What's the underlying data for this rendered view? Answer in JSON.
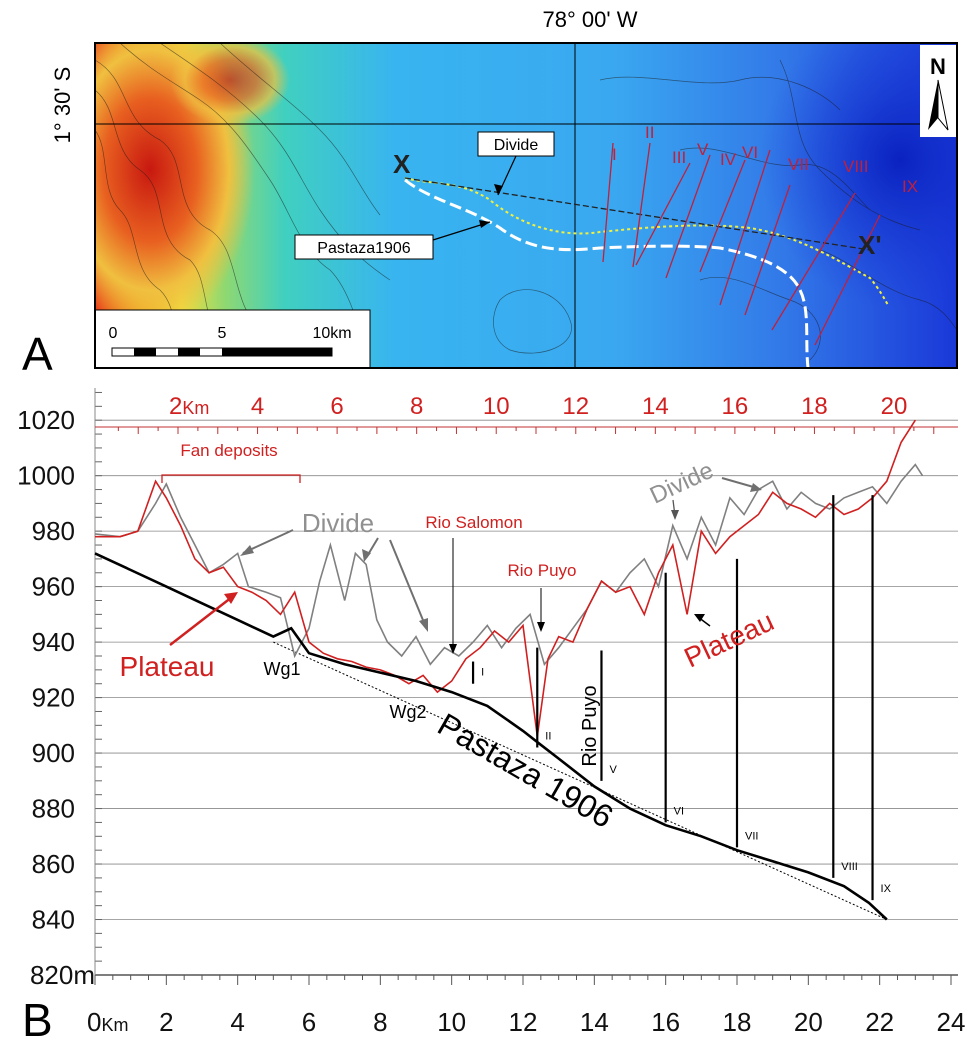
{
  "panel_a": {
    "letter": "A",
    "lon_label": "78° 00' W",
    "lat_label": "1° 30' S",
    "north_label": "N",
    "divide_label": "Divide",
    "pastaza_label": "Pastaza1906",
    "x_label": "X",
    "x_prime_label": "X'",
    "scale": {
      "ticks": [
        "0",
        "5",
        "10km"
      ]
    },
    "roman": [
      "I",
      "II",
      "III",
      "V",
      "IV",
      "VI",
      "VII",
      "VIII",
      "IX"
    ],
    "colors": {
      "low": "#1a3ee0",
      "mid": "#46b8f0",
      "high": "#e02a10",
      "divide": "#e8e830",
      "pastaza": "#ffffff",
      "section": "#c0203a"
    }
  },
  "chart_data": {
    "type": "line",
    "panel_letter": "B",
    "xlabel_bottom": "Km",
    "xlabel_top": "Km",
    "x_bottom_ticks": [
      "0",
      "2",
      "4",
      "6",
      "8",
      "10",
      "12",
      "14",
      "16",
      "18",
      "20",
      "22",
      "24"
    ],
    "x_top_ticks": [
      "2",
      "4",
      "6",
      "8",
      "10",
      "12",
      "14",
      "16",
      "18",
      "20"
    ],
    "y_ticks": [
      "820",
      "840",
      "860",
      "880",
      "900",
      "920",
      "940",
      "960",
      "980",
      "1000",
      "1020"
    ],
    "y_unit": "m",
    "xlim": [
      0,
      24
    ],
    "ylim": [
      817,
      1033
    ],
    "grid": true,
    "series": [
      {
        "name": "Divide",
        "color": "#808080",
        "x": [
          0,
          0.7,
          1.2,
          1.7,
          2.0,
          2.4,
          2.8,
          3.2,
          3.6,
          4.0,
          4.3,
          4.8,
          5.2,
          5.6,
          6.0,
          6.3,
          6.6,
          7.0,
          7.3,
          7.6,
          7.9,
          8.2,
          8.6,
          9.0,
          9.4,
          9.8,
          10.2,
          10.6,
          11.0,
          11.4,
          11.8,
          12.2,
          12.6,
          13.0,
          13.4,
          13.8,
          14.2,
          14.6,
          15.0,
          15.4,
          15.8,
          16.2,
          16.6,
          17.0,
          17.4,
          17.8,
          18.2,
          18.6,
          19.0,
          19.4,
          19.8,
          20.2,
          20.6,
          21.0,
          21.4,
          21.8,
          22.2,
          22.6,
          23.0,
          23.2
        ],
        "y": [
          979,
          978,
          980,
          990,
          997,
          985,
          975,
          965,
          968,
          972,
          960,
          958,
          956,
          935,
          945,
          962,
          975,
          955,
          972,
          968,
          948,
          940,
          935,
          942,
          932,
          938,
          935,
          940,
          946,
          938,
          945,
          950,
          932,
          938,
          945,
          952,
          962,
          958,
          965,
          970,
          960,
          982,
          970,
          985,
          975,
          992,
          986,
          995,
          998,
          988,
          994,
          990,
          988,
          992,
          994,
          996,
          990,
          998,
          1004,
          1000
        ]
      },
      {
        "name": "Plateau",
        "color": "#d02020",
        "x": [
          0,
          0.7,
          1.2,
          1.7,
          2.0,
          2.4,
          2.8,
          3.2,
          3.6,
          4.0,
          4.4,
          4.8,
          5.2,
          5.6,
          6.0,
          6.4,
          6.8,
          7.2,
          7.6,
          8.0,
          8.4,
          8.8,
          9.2,
          9.6,
          10.0,
          10.4,
          10.8,
          11.2,
          11.6,
          12.0,
          12.4,
          12.7,
          13.0,
          13.4,
          13.8,
          14.2,
          14.6,
          15.0,
          15.4,
          15.8,
          16.2,
          16.6,
          17.0,
          17.4,
          17.8,
          18.2,
          18.6,
          19.0,
          19.4,
          19.8,
          20.2,
          20.6,
          21.0,
          21.4,
          21.8,
          22.2,
          22.6,
          23.0
        ],
        "y": [
          978,
          978,
          980,
          998,
          992,
          982,
          970,
          965,
          967,
          960,
          958,
          955,
          950,
          958,
          940,
          936,
          934,
          933,
          931,
          930,
          928,
          925,
          928,
          922,
          926,
          934,
          938,
          944,
          940,
          946,
          906,
          934,
          942,
          940,
          952,
          962,
          958,
          960,
          950,
          965,
          975,
          950,
          980,
          972,
          978,
          982,
          986,
          994,
          990,
          988,
          985,
          990,
          986,
          988,
          992,
          998,
          1012,
          1020
        ]
      },
      {
        "name": "Pastaza 1906",
        "color": "#000000",
        "x": [
          0,
          1,
          2,
          3,
          4,
          5,
          5.5,
          6,
          7,
          8,
          9,
          10,
          11,
          12,
          12.5,
          13,
          14,
          15,
          16,
          17,
          18,
          19,
          20,
          21,
          21.7,
          22.2
        ],
        "y": [
          972,
          966,
          960,
          954,
          948,
          942,
          945,
          936,
          932,
          929,
          926,
          922,
          917,
          908,
          903,
          898,
          888,
          880,
          874,
          870,
          865,
          861,
          857,
          852,
          846,
          840
        ]
      }
    ],
    "trend_line": {
      "x": [
        5,
        22.2
      ],
      "y": [
        940,
        840
      ]
    },
    "vertical_markers": [
      {
        "label": "I",
        "x": 10.6,
        "y0": 925,
        "y1": 933
      },
      {
        "label": "II",
        "x": 12.4,
        "y0": 902,
        "y1": 938
      },
      {
        "label": "V",
        "x": 14.2,
        "y0": 890,
        "y1": 937
      },
      {
        "label": "VI",
        "x": 16.0,
        "y0": 875,
        "y1": 965
      },
      {
        "label": "VII",
        "x": 18.0,
        "y0": 866,
        "y1": 970
      },
      {
        "label": "VIII",
        "x": 20.7,
        "y0": 855,
        "y1": 993
      },
      {
        "label": "IX",
        "x": 21.8,
        "y0": 847,
        "y1": 993
      }
    ],
    "annotations": {
      "fan_deposits": "Fan deposits",
      "divide_1": "Divide",
      "divide_2": "Divide",
      "plateau_1": "Plateau",
      "plateau_2": "Plateau",
      "rio_salomon": "Rio Salomon",
      "rio_puyo_1": "Rio Puyo",
      "rio_puyo_2": "Rio Puyo",
      "wg1": "Wg1",
      "wg2": "Wg2",
      "pastaza": "Pastaza 1906"
    }
  }
}
